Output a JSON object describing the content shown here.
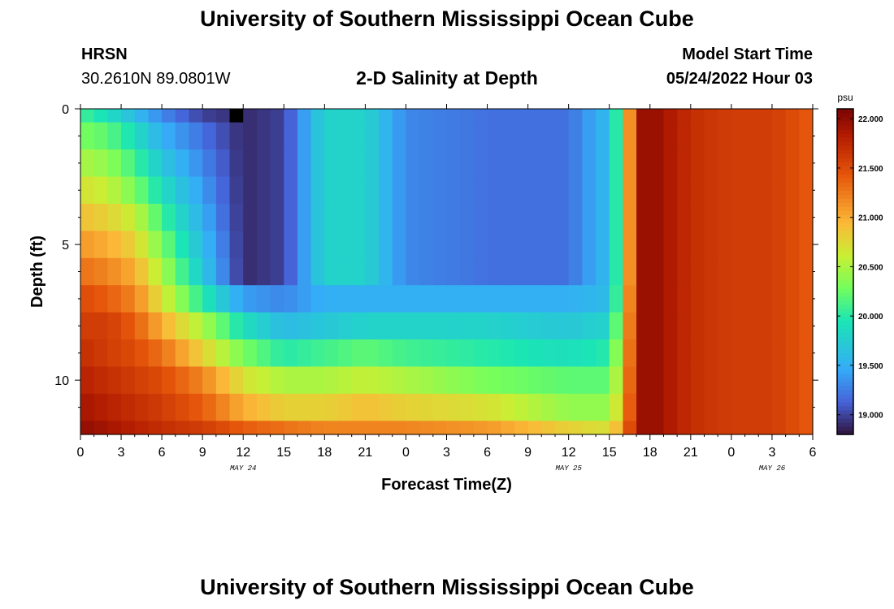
{
  "header": {
    "title": "University of Southern Mississippi Ocean Cube",
    "station": "HRSN",
    "coordinates": "30.2610N  89.0801W",
    "chart_title": "2-D Salinity at Depth",
    "start_label": "Model Start Time",
    "start_value": "05/24/2022 Hour 03"
  },
  "footer": {
    "title": "University of Southern Mississippi Ocean Cube"
  },
  "chart_data": {
    "type": "heatmap",
    "title": "2-D Salinity at Depth",
    "xlabel": "Forecast Time(Z)",
    "ylabel": "Depth (ft)",
    "x_unit": "hours since 00Z May 24",
    "x_range": [
      0,
      54
    ],
    "x_ticks": [
      0,
      3,
      6,
      9,
      12,
      15,
      18,
      21,
      24,
      27,
      30,
      33,
      36,
      39,
      42,
      45,
      48,
      51,
      54
    ],
    "x_tick_labels": [
      "0",
      "3",
      "6",
      "9",
      "12",
      "15",
      "18",
      "21",
      "0",
      "3",
      "6",
      "9",
      "12",
      "15",
      "18",
      "21",
      "0",
      "3",
      "6"
    ],
    "date_labels": [
      {
        "hour": 12,
        "text": "MAY 24"
      },
      {
        "hour": 36,
        "text": "MAY 25"
      },
      {
        "hour": 51,
        "text": "MAY 26"
      }
    ],
    "y_range": [
      0,
      12
    ],
    "y_ticks": [
      0,
      5,
      10
    ],
    "y_tick_labels": [
      "0",
      "5",
      "10"
    ],
    "colorbar": {
      "unit": "psu",
      "min": 18.8,
      "max": 22.1,
      "ticks": [
        19.0,
        19.5,
        20.0,
        20.5,
        21.0,
        21.5,
        22.0
      ],
      "tick_labels": [
        "19.000",
        "19.500",
        "20.000",
        "20.500",
        "21.000",
        "21.500",
        "22.000"
      ]
    },
    "layer_tops_ft": [
      0,
      0.5,
      1.5,
      2.5,
      3.5,
      4.5,
      5.5,
      6.5,
      7.5,
      8.5,
      9.5,
      10.5,
      11.5
    ],
    "layer_bottoms_ft": [
      0.5,
      1.5,
      2.5,
      3.5,
      4.5,
      5.5,
      6.5,
      7.5,
      8.5,
      9.5,
      10.5,
      11.5,
      12
    ],
    "time_knots_h": [
      0,
      2,
      4,
      6,
      9,
      12,
      15,
      18,
      21,
      24,
      30,
      36,
      39,
      40,
      41,
      42,
      45,
      48,
      51,
      54
    ],
    "salinity_psu": [
      [
        20.1,
        19.9,
        19.6,
        19.3,
        19.0,
        18.9,
        19.0,
        19.8,
        19.8,
        19.3,
        19.2,
        19.2,
        19.6,
        20.4,
        21.9,
        22.0,
        21.7,
        21.6,
        21.6,
        21.4
      ],
      [
        20.3,
        20.2,
        19.9,
        19.5,
        19.2,
        18.9,
        19.0,
        19.8,
        19.8,
        19.3,
        19.2,
        19.2,
        19.6,
        20.4,
        21.9,
        22.0,
        21.7,
        21.6,
        21.6,
        21.4
      ],
      [
        20.5,
        20.4,
        20.1,
        19.7,
        19.3,
        18.9,
        19.0,
        19.8,
        19.8,
        19.3,
        19.2,
        19.2,
        19.6,
        20.4,
        21.9,
        22.0,
        21.7,
        21.6,
        21.6,
        21.4
      ],
      [
        20.7,
        20.6,
        20.3,
        19.9,
        19.4,
        18.9,
        19.0,
        19.8,
        19.8,
        19.3,
        19.2,
        19.2,
        19.6,
        20.4,
        21.9,
        22.0,
        21.7,
        21.6,
        21.6,
        21.4
      ],
      [
        20.9,
        20.8,
        20.6,
        20.1,
        19.5,
        18.9,
        19.0,
        19.8,
        19.8,
        19.3,
        19.2,
        19.2,
        19.6,
        20.4,
        21.9,
        22.0,
        21.7,
        21.6,
        21.6,
        21.4
      ],
      [
        21.1,
        21.0,
        20.8,
        20.3,
        19.6,
        18.9,
        19.0,
        19.8,
        19.8,
        19.3,
        19.2,
        19.2,
        19.6,
        20.4,
        21.9,
        22.0,
        21.7,
        21.6,
        21.6,
        21.4
      ],
      [
        21.3,
        21.2,
        21.0,
        20.5,
        19.7,
        18.9,
        19.0,
        19.8,
        19.8,
        19.3,
        19.2,
        19.2,
        19.6,
        20.4,
        21.9,
        22.0,
        21.7,
        21.6,
        21.6,
        21.4
      ],
      [
        21.5,
        21.4,
        21.2,
        20.7,
        20.0,
        19.4,
        19.3,
        19.5,
        19.5,
        19.5,
        19.5,
        19.5,
        19.6,
        20.5,
        21.9,
        22.0,
        21.7,
        21.6,
        21.6,
        21.4
      ],
      [
        21.6,
        21.6,
        21.4,
        21.0,
        20.5,
        19.9,
        19.6,
        19.7,
        19.8,
        19.8,
        19.8,
        19.7,
        19.8,
        20.6,
        21.9,
        22.0,
        21.7,
        21.6,
        21.6,
        21.4
      ],
      [
        21.7,
        21.6,
        21.5,
        21.3,
        20.8,
        20.3,
        20.0,
        20.1,
        20.2,
        20.1,
        20.0,
        19.9,
        20.0,
        20.7,
        21.9,
        22.0,
        21.7,
        21.6,
        21.6,
        21.4
      ],
      [
        21.8,
        21.7,
        21.6,
        21.5,
        21.2,
        20.7,
        20.5,
        20.5,
        20.6,
        20.5,
        20.3,
        20.2,
        20.2,
        20.8,
        21.9,
        22.0,
        21.7,
        21.6,
        21.6,
        21.4
      ],
      [
        21.9,
        21.8,
        21.7,
        21.6,
        21.4,
        21.0,
        20.8,
        20.8,
        20.9,
        20.8,
        20.7,
        20.4,
        20.4,
        20.9,
        21.9,
        22.0,
        21.7,
        21.6,
        21.6,
        21.4
      ],
      [
        22.0,
        21.9,
        21.8,
        21.7,
        21.6,
        21.4,
        21.3,
        21.2,
        21.2,
        21.2,
        21.1,
        20.8,
        20.7,
        21.1,
        21.9,
        22.0,
        21.7,
        21.6,
        21.6,
        21.4
      ]
    ],
    "missing_cells": [
      {
        "hour": 11,
        "depth_ft": 0
      }
    ]
  }
}
